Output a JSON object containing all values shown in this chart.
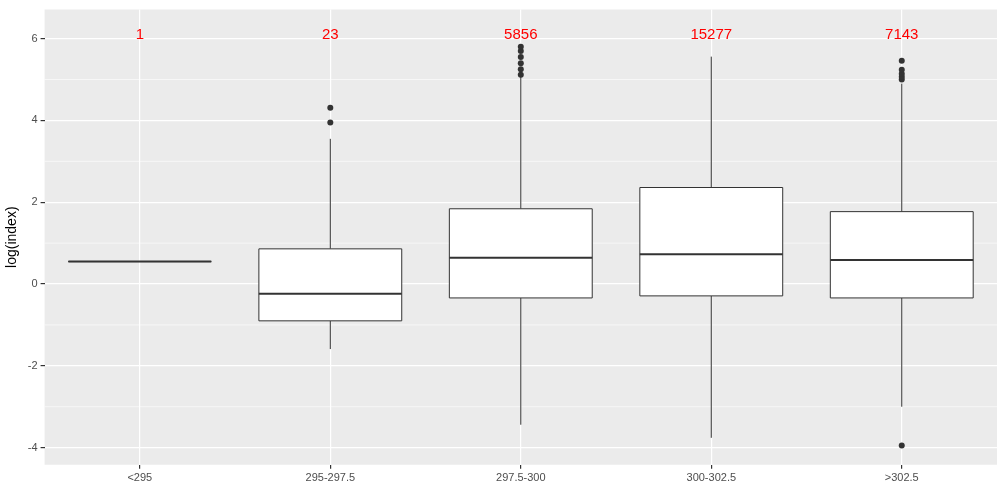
{
  "chart_data": {
    "type": "box",
    "ylabel": "log(index)",
    "categories": [
      "<295",
      "295-297.5",
      "297.5-300",
      "300-302.5",
      ">302.5"
    ],
    "boxes": [
      {
        "low": 0.55,
        "q1": 0.55,
        "median": 0.55,
        "q3": 0.55,
        "high": 0.55
      },
      {
        "low": -1.59,
        "q1": -0.9,
        "median": -0.24,
        "q3": 0.86,
        "high": 3.55,
        "outliers": [
          3.95,
          4.31
        ]
      },
      {
        "low": -3.44,
        "q1": -0.34,
        "median": 0.64,
        "q3": 1.84,
        "high": 5.1,
        "outliers": [
          5.12,
          5.25,
          5.4,
          5.55,
          5.7,
          5.8
        ]
      },
      {
        "low": -3.76,
        "q1": -0.29,
        "median": 0.73,
        "q3": 2.36,
        "high": 5.56
      },
      {
        "low": -3.0,
        "q1": -0.34,
        "median": 0.59,
        "q3": 1.77,
        "high": 4.9,
        "outliers": [
          -3.95,
          5.0,
          5.07,
          5.14,
          5.24,
          5.46
        ]
      }
    ],
    "ylim": [
      -4.42,
      6.71
    ],
    "yticks": [
      -4,
      -2,
      0,
      2,
      4,
      6
    ],
    "grid": true,
    "annotations": [
      "1",
      "23",
      "5856",
      "15277",
      "7143"
    ]
  }
}
